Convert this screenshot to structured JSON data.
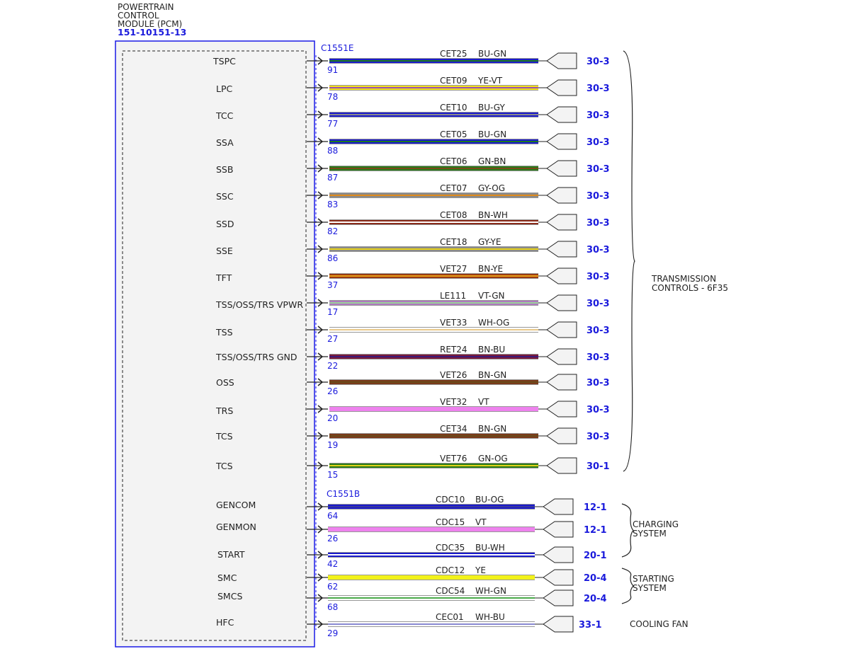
{
  "module": {
    "title_lines": [
      "POWERTRAIN",
      "CONTROL",
      "MODULE (PCM)"
    ],
    "part_number": "151-10151-13"
  },
  "connectors": [
    {
      "name": "C1551E"
    },
    {
      "name": "C1551B"
    }
  ],
  "circuits": [
    {
      "signal": "TSPC",
      "pin": "91",
      "circuit": "CET25",
      "color_code": "BU-GN",
      "ref": "30-3",
      "colors": [
        "#1a1acc",
        "#1f7a1f"
      ],
      "connector": 0
    },
    {
      "signal": "LPC",
      "pin": "78",
      "circuit": "CET09",
      "color_code": "YE-VT",
      "ref": "30-3",
      "colors": [
        "#f2e21a",
        "#9a4fb0"
      ],
      "connector": 0
    },
    {
      "signal": "TCC",
      "pin": "77",
      "circuit": "CET10",
      "color_code": "BU-GY",
      "ref": "30-3",
      "colors": [
        "#1a1acc",
        "#8a8a8a"
      ],
      "connector": 0
    },
    {
      "signal": "SSA",
      "pin": "88",
      "circuit": "CET05",
      "color_code": "BU-GN",
      "ref": "30-3",
      "colors": [
        "#1a1acc",
        "#1f7a1f"
      ],
      "connector": 0
    },
    {
      "signal": "SSB",
      "pin": "87",
      "circuit": "CET06",
      "color_code": "GN-BN",
      "ref": "30-3",
      "colors": [
        "#2a7a1a",
        "#7a4a1a"
      ],
      "connector": 0
    },
    {
      "signal": "SSC",
      "pin": "83",
      "circuit": "CET07",
      "color_code": "GY-OG",
      "ref": "30-3",
      "colors": [
        "#8a8a8a",
        "#e08a1a"
      ],
      "connector": 0
    },
    {
      "signal": "SSD",
      "pin": "82",
      "circuit": "CET08",
      "color_code": "BN-WH",
      "ref": "30-3",
      "colors": [
        "#8a2a1a",
        "#ffffff"
      ],
      "connector": 0
    },
    {
      "signal": "SSE",
      "pin": "86",
      "circuit": "CET18",
      "color_code": "GY-YE",
      "ref": "30-3",
      "colors": [
        "#8a8a8a",
        "#e8d21a"
      ],
      "connector": 0
    },
    {
      "signal": "TFT",
      "pin": "37",
      "circuit": "VET27",
      "color_code": "BN-YE",
      "ref": "30-3",
      "colors": [
        "#9a3a10",
        "#e8a01a"
      ],
      "connector": 0
    },
    {
      "signal": "TSS/OSS/TRS VPWR",
      "pin": "17",
      "circuit": "LE111",
      "color_code": "VT-GN",
      "ref": "30-3",
      "colors": [
        "#b07ac0",
        "#9ad29a"
      ],
      "connector": 0
    },
    {
      "signal": "TSS",
      "pin": "27",
      "circuit": "VET33",
      "color_code": "WH-OG",
      "ref": "30-3",
      "colors": [
        "#ffffff",
        "#e8c88a"
      ],
      "connector": 0
    },
    {
      "signal": "TSS/OSS/TRS GND",
      "pin": "22",
      "circuit": "RET24",
      "color_code": "BN-BU",
      "ref": "30-3",
      "colors": [
        "#7a1a3a",
        "#3a1a7a"
      ],
      "connector": 0
    },
    {
      "signal": "OSS",
      "pin": "26",
      "circuit": "VET26",
      "color_code": "BN-GN",
      "ref": "30-3",
      "colors": [
        "#7a3a1a",
        "#6a4a1a"
      ],
      "connector": 0
    },
    {
      "signal": "TRS",
      "pin": "20",
      "circuit": "VET32",
      "color_code": "VT",
      "ref": "30-3",
      "colors": [
        "#ee82ee",
        "#ee82ee"
      ],
      "connector": 0
    },
    {
      "signal": "TCS",
      "pin": "19",
      "circuit": "CET34",
      "color_code": "BN-GN",
      "ref": "30-3",
      "colors": [
        "#7a3a1a",
        "#6a4a1a"
      ],
      "connector": 0
    },
    {
      "signal": "TCS",
      "pin": "15",
      "circuit": "VET76",
      "color_code": "GN-OG",
      "ref": "30-1",
      "colors": [
        "#2a7a1a",
        "#e0d21a"
      ],
      "connector": 0
    },
    {
      "signal": "GENCOM",
      "pin": "64",
      "circuit": "CDC10",
      "color_code": "BU-OG",
      "ref": "12-1",
      "colors": [
        "#1a1acc",
        "#3a3a9a"
      ],
      "connector": 1
    },
    {
      "signal": "GENMON",
      "pin": "26",
      "circuit": "CDC15",
      "color_code": "VT",
      "ref": "12-1",
      "colors": [
        "#ee82ee",
        "#ee82ee"
      ],
      "connector": 1
    },
    {
      "signal": "START",
      "pin": "42",
      "circuit": "CDC35",
      "color_code": "BU-WH",
      "ref": "20-1",
      "colors": [
        "#1a1acc",
        "#ffffff"
      ],
      "connector": 1
    },
    {
      "signal": "SMC",
      "pin": "62",
      "circuit": "CDC12",
      "color_code": "YE",
      "ref": "20-4",
      "colors": [
        "#f2f21a",
        "#f2f21a"
      ],
      "connector": 1
    },
    {
      "signal": "SMCS",
      "pin": "68",
      "circuit": "CDC54",
      "color_code": "WH-GN",
      "ref": "20-4",
      "colors": [
        "#ffffff",
        "#4aaa4a"
      ],
      "connector": 1
    },
    {
      "signal": "HFC",
      "pin": "29",
      "circuit": "CEC01",
      "color_code": "WH-BU",
      "ref": "33-1",
      "colors": [
        "#ffffff",
        "#8a8ad2"
      ],
      "connector": 1
    }
  ],
  "groups": [
    {
      "label_lines": [
        "TRANSMISSION",
        "CONTROLS - 6F35"
      ],
      "first": 0,
      "last": 15,
      "brace": true
    },
    {
      "label_lines": [
        "CHARGING",
        "SYSTEM"
      ],
      "first": 16,
      "last": 18,
      "brace": true
    },
    {
      "label_lines": [
        "STARTING",
        "SYSTEM"
      ],
      "first": 19,
      "last": 20,
      "brace": true
    },
    {
      "label_lines": [
        "COOLING FAN"
      ],
      "first": 21,
      "last": 21,
      "brace": false
    }
  ],
  "colors": {
    "module_border": "#1a1ae6",
    "module_fill": "#f3f3f3",
    "accent_text": "#1a1adc",
    "line": "#222222"
  }
}
